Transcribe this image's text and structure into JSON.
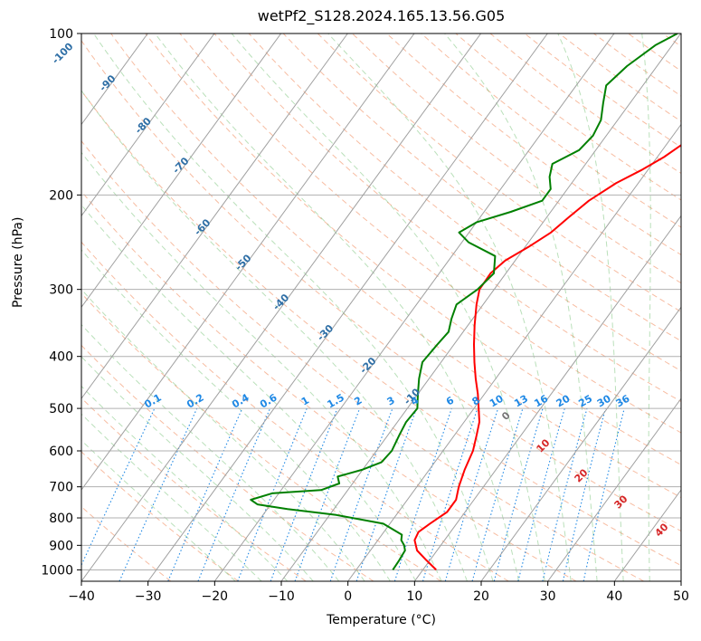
{
  "chart_data": {
    "type": "line",
    "title": "wetPf2_S128.2024.165.13.56.G05",
    "xlabel": "Temperature (°C)",
    "ylabel": "Pressure (hPa)",
    "xlim": [
      -40,
      50
    ],
    "ylim": [
      1050,
      100
    ],
    "y_scale": "log",
    "grid": true,
    "x_ticks": [
      -40,
      -30,
      -20,
      -10,
      0,
      10,
      20,
      30,
      40,
      50
    ],
    "y_ticks": [
      100,
      200,
      300,
      400,
      500,
      600,
      700,
      800,
      900,
      1000
    ],
    "series": [
      {
        "role": "temperature",
        "color": "#ff0000",
        "points": [
          [
            12,
            1000
          ],
          [
            9.5,
            960
          ],
          [
            7,
            920
          ],
          [
            5.5,
            880
          ],
          [
            5.2,
            850
          ],
          [
            6,
            820
          ],
          [
            7.3,
            780
          ],
          [
            7.3,
            740
          ],
          [
            6.3,
            700
          ],
          [
            5.3,
            650
          ],
          [
            4.5,
            600
          ],
          [
            3.3,
            560
          ],
          [
            2.3,
            530
          ],
          [
            0.7,
            500
          ],
          [
            -1,
            470
          ],
          [
            -3,
            440
          ],
          [
            -5,
            410
          ],
          [
            -7,
            380
          ],
          [
            -9,
            350
          ],
          [
            -11,
            320
          ],
          [
            -12.2,
            300
          ],
          [
            -12.3,
            280
          ],
          [
            -11.5,
            265
          ],
          [
            -9.5,
            250
          ],
          [
            -7.7,
            235
          ],
          [
            -6.7,
            220
          ],
          [
            -5.5,
            205
          ],
          [
            -3.3,
            190
          ],
          [
            -1,
            180
          ],
          [
            1,
            170
          ],
          [
            2.5,
            160
          ],
          [
            4,
            150
          ],
          [
            6,
            140
          ],
          [
            7.5,
            130
          ],
          [
            9.5,
            120
          ],
          [
            12,
            110
          ],
          [
            14.5,
            100
          ]
        ]
      },
      {
        "role": "dewpoint",
        "color": "#008000",
        "points": [
          [
            5.5,
            1000
          ],
          [
            5.4,
            960
          ],
          [
            5.2,
            920
          ],
          [
            4.5,
            900
          ],
          [
            3.5,
            880
          ],
          [
            3,
            860
          ],
          [
            -1,
            820
          ],
          [
            -9,
            790
          ],
          [
            -17,
            770
          ],
          [
            -22,
            755
          ],
          [
            -23.5,
            740
          ],
          [
            -21,
            720
          ],
          [
            -14,
            710
          ],
          [
            -12,
            690
          ],
          [
            -13,
            670
          ],
          [
            -10,
            650
          ],
          [
            -8,
            630
          ],
          [
            -7.7,
            600
          ],
          [
            -8.3,
            560
          ],
          [
            -8.7,
            530
          ],
          [
            -8.5,
            500
          ],
          [
            -10,
            470
          ],
          [
            -11.5,
            440
          ],
          [
            -12.8,
            410
          ],
          [
            -12.5,
            380
          ],
          [
            -12.2,
            360
          ],
          [
            -13.2,
            340
          ],
          [
            -14,
            320
          ],
          [
            -12.5,
            300
          ],
          [
            -11.8,
            280
          ],
          [
            -13.5,
            260
          ],
          [
            -19,
            245
          ],
          [
            -21.5,
            235
          ],
          [
            -20,
            225
          ],
          [
            -16,
            215
          ],
          [
            -12.5,
            205
          ],
          [
            -12.5,
            195
          ],
          [
            -14,
            185
          ],
          [
            -15,
            175
          ],
          [
            -12.5,
            165
          ],
          [
            -12,
            155
          ],
          [
            -12.5,
            145
          ],
          [
            -14,
            135
          ],
          [
            -15.5,
            125
          ],
          [
            -14.5,
            115
          ],
          [
            -12.5,
            105
          ],
          [
            -10.5,
            100
          ]
        ]
      }
    ],
    "skew_labels_blue": [
      "-100",
      "-90",
      "-80",
      "-70",
      "-60",
      "-50",
      "-40",
      "-30",
      "-20",
      "-10"
    ],
    "mixing_ratio_labels": [
      "0.1",
      "0.2",
      "0.4",
      "0.6",
      "1",
      "1.5",
      "2",
      "3",
      "4",
      "6",
      "8",
      "10",
      "13",
      "16",
      "20",
      "25",
      "30",
      "36"
    ],
    "moist_adiabat_labels": [
      "0",
      "10",
      "20",
      "30",
      "40"
    ]
  }
}
